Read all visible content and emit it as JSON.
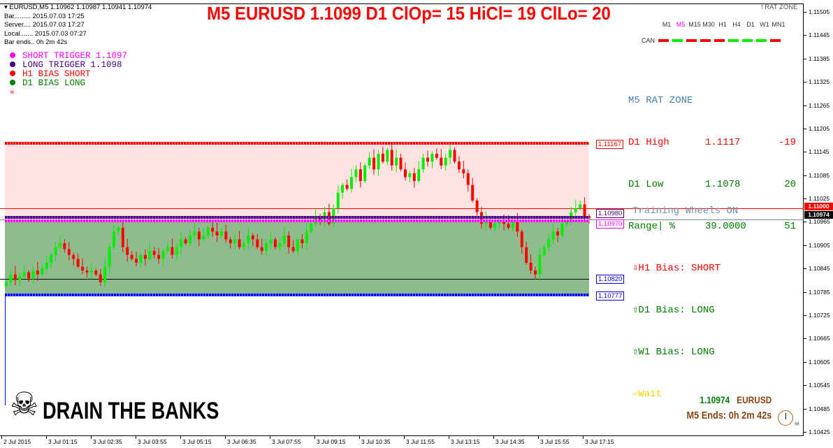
{
  "window": {
    "symbol_line": "EURUSD,M5  1.10962 1.10987 1.10941 1.10974",
    "bar": "Bar......... 2015.07.03 17:25",
    "server": "Server.... 2015.07.03 17:27",
    "local": "Local....... 2015.07.03 07:27",
    "bar_ends": "Bar ends.. 0h 2m 42s"
  },
  "legend": [
    {
      "label": "SHORT TRIGGER 1.1097",
      "color": "#ff00ff"
    },
    {
      "label": "LONG TRIGGER  1.1098",
      "color": "#4b0082"
    },
    {
      "label": "H1 BIAS SHORT",
      "color": "#ff0000"
    },
    {
      "label": "D1 BIAS LONG",
      "color": "#008000"
    }
  ],
  "legend_icon": "skull-crossbones-icon",
  "title": "M5 EURUSD 1.1099 D1 ClOp= 15 HiCl= 19 ClLo= 20",
  "indicator_name": "! RAT ZONE",
  "timeframes": [
    {
      "label": "M1",
      "active": false
    },
    {
      "label": "M5",
      "active": true
    },
    {
      "label": "M15",
      "active": false
    },
    {
      "label": "M30",
      "active": false
    },
    {
      "label": "H1",
      "active": false
    },
    {
      "label": "H4",
      "active": false
    },
    {
      "label": "D1",
      "active": false
    },
    {
      "label": "W1",
      "active": false
    },
    {
      "label": "MN1",
      "active": false
    }
  ],
  "can": {
    "label": "CAN",
    "states": [
      "red",
      "green",
      "red",
      "red",
      "red",
      "green",
      "green",
      "green",
      "red"
    ]
  },
  "rat_zone": {
    "header": "M5 RAT ZONE",
    "d1_high": {
      "label": "D1 High",
      "value": "1.1117",
      "diff": "-19"
    },
    "d1_low": {
      "label": "D1 Low",
      "value": "1.1078",
      "diff": "20"
    },
    "range": {
      "label": "Range| %",
      "value": "39.0000",
      "diff": "51"
    },
    "h1_bias": "⇩H1 Bias: SHORT",
    "d1_bias": "⇧D1 Bias: LONG",
    "w1_bias": "⇧W1 Bias: LONG",
    "signal": "⇨Wait"
  },
  "training_wheels": "Training Wheels ON",
  "levels": {
    "d1_high": "1.11167",
    "long_trigger": "1.10980",
    "short_trigger": "1.10970",
    "support": "1.10820",
    "d1_low": "1.10777",
    "alert_line": "1.11000",
    "current_price": "1.10974"
  },
  "colors": {
    "bull": "#00ee00",
    "bear": "#ff0000",
    "high_zone": "#ffe4e1",
    "low_zone": "#8fbc8f"
  },
  "price_axis": [
    "1.11505",
    "1.11445",
    "1.11385",
    "1.11325",
    "1.11265",
    "1.11205",
    "1.11145",
    "1.11085",
    "1.11025",
    "1.10965",
    "1.10905",
    "1.10845",
    "1.10785",
    "1.10725",
    "1.10665",
    "1.10605",
    "1.10545",
    "1.10485",
    "1.10425"
  ],
  "time_axis": [
    "2 Jul 2015",
    "3 Jul 01:15",
    "3 Jul 02:35",
    "3 Jul 03:55",
    "3 Jul 05:15",
    "3 Jul 06:35",
    "3 Jul 07:55",
    "3 Jul 09:15",
    "3 Jul 10:35",
    "3 Jul 11:55",
    "3 Jul 13:15",
    "3 Jul 14:35",
    "3 Jul 15:55",
    "3 Jul 17:15"
  ],
  "closes": [
    1.1081,
    1.1083,
    1.10815,
    1.10825,
    1.10835,
    1.1082,
    1.1084,
    1.1083,
    1.10845,
    1.1086,
    1.1088,
    1.109,
    1.1091,
    1.10895,
    1.1088,
    1.1087,
    1.1085,
    1.1084,
    1.10835,
    1.1084,
    1.1083,
    1.1081,
    1.1085,
    1.109,
    1.1094,
    1.1095,
    1.109,
    1.1088,
    1.1087,
    1.1086,
    1.1088,
    1.1087,
    1.1089,
    1.1088,
    1.1087,
    1.1089,
    1.109,
    1.1088,
    1.109,
    1.1092,
    1.1091,
    1.1093,
    1.1094,
    1.1092,
    1.1093,
    1.1095,
    1.1094,
    1.1093,
    1.1094,
    1.1092,
    1.1091,
    1.1092,
    1.109,
    1.1091,
    1.1093,
    1.1092,
    1.109,
    1.1089,
    1.1091,
    1.1092,
    1.109,
    1.1091,
    1.1093,
    1.109,
    1.1089,
    1.1092,
    1.1091,
    1.1094,
    1.1096,
    1.1098,
    1.1097,
    1.1099,
    1.1096,
    1.11,
    1.1104,
    1.1106,
    1.1105,
    1.1108,
    1.111,
    1.1107,
    1.1111,
    1.1113,
    1.111,
    1.1114,
    1.1112,
    1.1115,
    1.1111,
    1.1113,
    1.111,
    1.1108,
    1.1109,
    1.1107,
    1.111,
    1.1113,
    1.1112,
    1.1114,
    1.1113,
    1.1111,
    1.1113,
    1.1115,
    1.1112,
    1.111,
    1.1109,
    1.1106,
    1.1102,
    1.1099,
    1.1096,
    1.1097,
    1.1095,
    1.1096,
    1.1097,
    1.1096,
    1.1095,
    1.1097,
    1.1094,
    1.109,
    1.1086,
    1.1084,
    1.1083,
    1.1088,
    1.109,
    1.1092,
    1.1094,
    1.1093,
    1.1096,
    1.1097,
    1.1099,
    1.11,
    1.1101,
    1.1098,
    1.10974
  ],
  "footer": {
    "price": "1.10974",
    "symbol": "EURUSD",
    "ends": "M5 Ends: 0h 2m 42s"
  },
  "logo_text": "DRAIN THE BANKS"
}
